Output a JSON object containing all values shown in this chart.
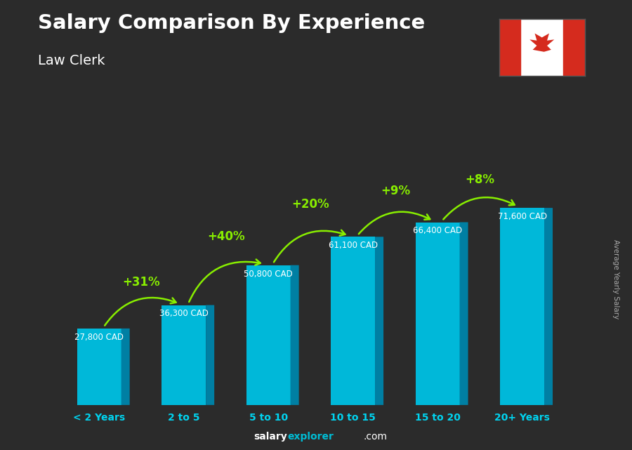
{
  "title": "Salary Comparison By Experience",
  "subtitle": "Law Clerk",
  "categories": [
    "< 2 Years",
    "2 to 5",
    "5 to 10",
    "10 to 15",
    "15 to 20",
    "20+ Years"
  ],
  "values": [
    27800,
    36300,
    50800,
    61100,
    66400,
    71600
  ],
  "labels": [
    "27,800 CAD",
    "36,300 CAD",
    "50,800 CAD",
    "61,100 CAD",
    "66,400 CAD",
    "71,600 CAD"
  ],
  "pct_changes": [
    "+31%",
    "+40%",
    "+20%",
    "+9%",
    "+8%"
  ],
  "bar_color": "#00b8d9",
  "bar_right_color": "#007fa3",
  "bar_top_color": "#33ccee",
  "bg_color": "#2b2b2b",
  "title_color": "#ffffff",
  "subtitle_color": "#ffffff",
  "label_color": "#ffffff",
  "pct_color": "#88ee00",
  "xticklabel_color": "#00d4f0",
  "ylabel": "Average Yearly Salary",
  "ylabel_color": "#aaaaaa",
  "footer_salary_color": "#ffffff",
  "footer_explorer_color": "#00bcd4",
  "footer_com_color": "#ffffff",
  "ylim": [
    0,
    85000
  ],
  "bar_width": 0.52,
  "depth": 0.1
}
